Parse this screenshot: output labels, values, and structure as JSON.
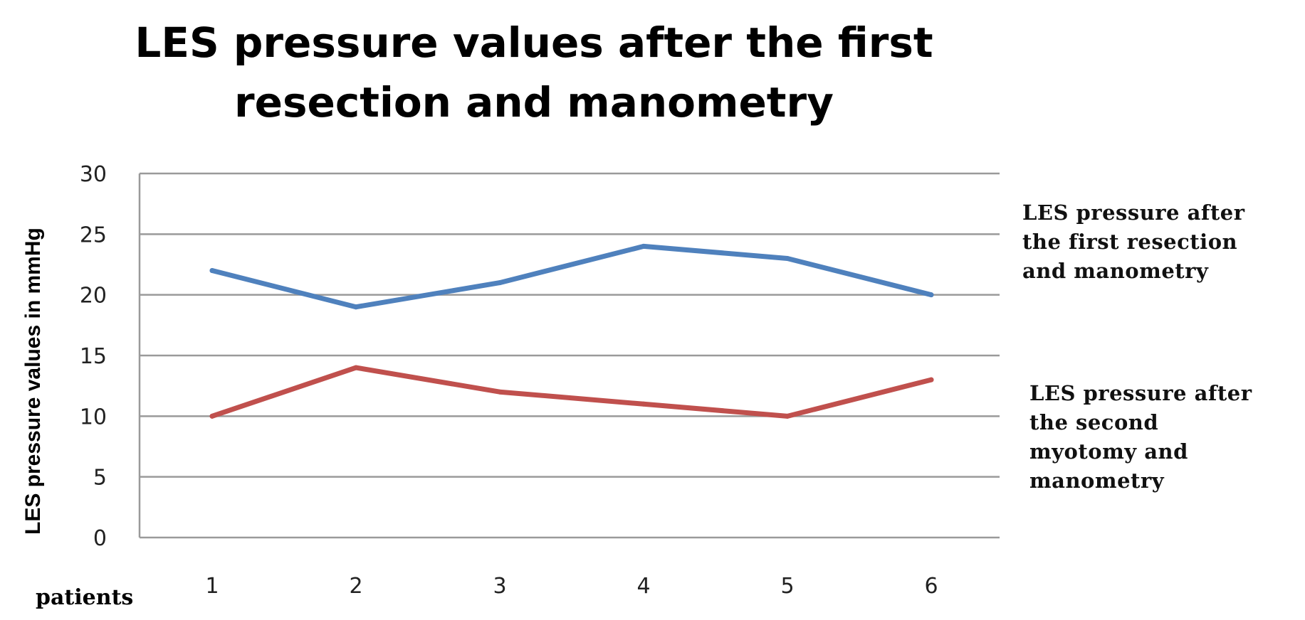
{
  "chart_data": {
    "type": "line",
    "title": "LES pressure values after the first resection and manometry",
    "title_lines": [
      "LES pressure values after the first",
      "resection and manometry"
    ],
    "xlabel": "patients",
    "ylabel": "LES pressure values  in mmHg",
    "categories": [
      "1",
      "2",
      "3",
      "4",
      "5",
      "6"
    ],
    "ylim": [
      0,
      30
    ],
    "yticks": [
      "0",
      "5",
      "10",
      "15",
      "20",
      "25",
      "30"
    ],
    "grid": "horizontal",
    "legend_placement": "right",
    "series": [
      {
        "name": "LES pressure after the first resection and manometry",
        "name_lines": [
          "LES pressure after",
          "the first resection",
          "and manometry"
        ],
        "color": "#4f81bd",
        "values": [
          22,
          19,
          21,
          24,
          23,
          20
        ]
      },
      {
        "name": "LES pressure after the second myotomy and manometry",
        "name_lines": [
          "LES pressure after",
          "the second",
          "myotomy and",
          "manometry"
        ],
        "color": "#c0504d",
        "values": [
          10,
          14,
          12,
          11,
          10,
          13
        ]
      }
    ]
  }
}
